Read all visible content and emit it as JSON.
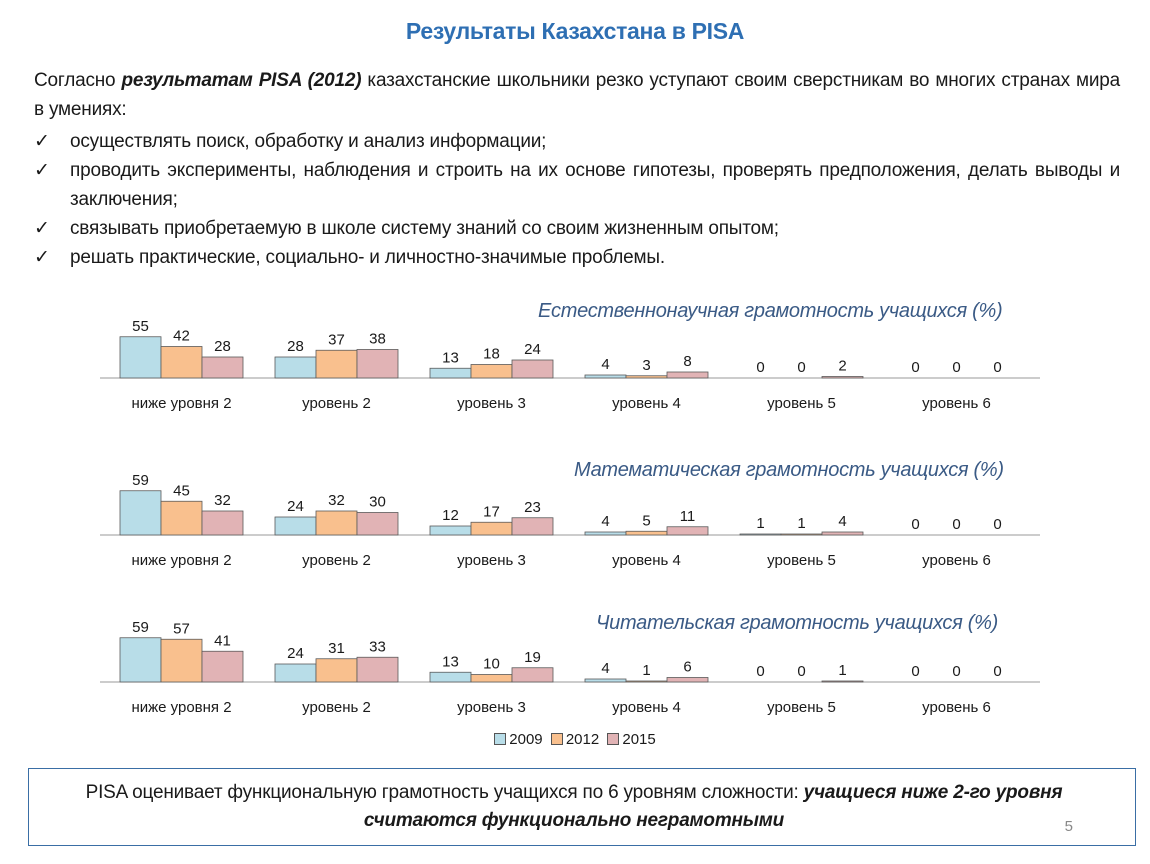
{
  "title": "Результаты Казахстана в PISA",
  "intro": {
    "pre": "Согласно ",
    "bold": "результатам PISA (2012)",
    "post": " казахстанские школьники резко уступают своим сверстникам во многих странах мира в умениях:"
  },
  "bullets": [
    "осуществлять поиск, обработку и анализ информации;",
    "проводить эксперименты, наблюдения и строить на их основе гипотезы, проверять предположения, делать выводы и заключения;",
    "связывать приобретаемую в школе систему знаний со своим жизненным опытом;",
    "решать практические, социально- и личностно-значимые проблемы."
  ],
  "check_glyph": "✓",
  "colors": {
    "2009": "#b8dde8",
    "2012": "#f9c08e",
    "2015": "#e1b3b5",
    "title": "#2e6fb3",
    "chart_title": "#3a5a85"
  },
  "chart_data": [
    {
      "type": "bar",
      "title": "Естественнонаучная грамотность учащихся (%)",
      "categories": [
        "ниже уровня 2",
        "уровень 2",
        "уровень 3",
        "уровень 4",
        "уровень 5",
        "уровень 6"
      ],
      "series": [
        {
          "name": "2009",
          "values": [
            55,
            28,
            13,
            4,
            0,
            0
          ]
        },
        {
          "name": "2012",
          "values": [
            42,
            37,
            18,
            3,
            0,
            0
          ]
        },
        {
          "name": "2015",
          "values": [
            28,
            38,
            24,
            8,
            2,
            0
          ]
        }
      ],
      "ylim": [
        0,
        60
      ]
    },
    {
      "type": "bar",
      "title": "Математическая грамотность учащихся (%)",
      "categories": [
        "ниже уровня 2",
        "уровень 2",
        "уровень 3",
        "уровень 4",
        "уровень 5",
        "уровень 6"
      ],
      "series": [
        {
          "name": "2009",
          "values": [
            59,
            24,
            12,
            4,
            1,
            0
          ]
        },
        {
          "name": "2012",
          "values": [
            45,
            32,
            17,
            5,
            1,
            0
          ]
        },
        {
          "name": "2015",
          "values": [
            32,
            30,
            23,
            11,
            4,
            0
          ]
        }
      ],
      "ylim": [
        0,
        60
      ]
    },
    {
      "type": "bar",
      "title": "Читательская  грамотность учащихся (%)",
      "categories": [
        "ниже уровня 2",
        "уровень 2",
        "уровень 3",
        "уровень 4",
        "уровень 5",
        "уровень 6"
      ],
      "series": [
        {
          "name": "2009",
          "values": [
            59,
            24,
            13,
            4,
            0,
            0
          ]
        },
        {
          "name": "2012",
          "values": [
            57,
            31,
            10,
            1,
            0,
            0
          ]
        },
        {
          "name": "2015",
          "values": [
            41,
            33,
            19,
            6,
            1,
            0
          ]
        }
      ],
      "ylim": [
        0,
        60
      ]
    }
  ],
  "legend": [
    "2009",
    "2012",
    "2015"
  ],
  "footer": {
    "pre": "PISA оценивает функциональную грамотность учащихся по 6 уровням сложности: ",
    "bold": "учащиеся ниже 2-го уровня считаются функционально неграмотными"
  },
  "page_number": "5"
}
